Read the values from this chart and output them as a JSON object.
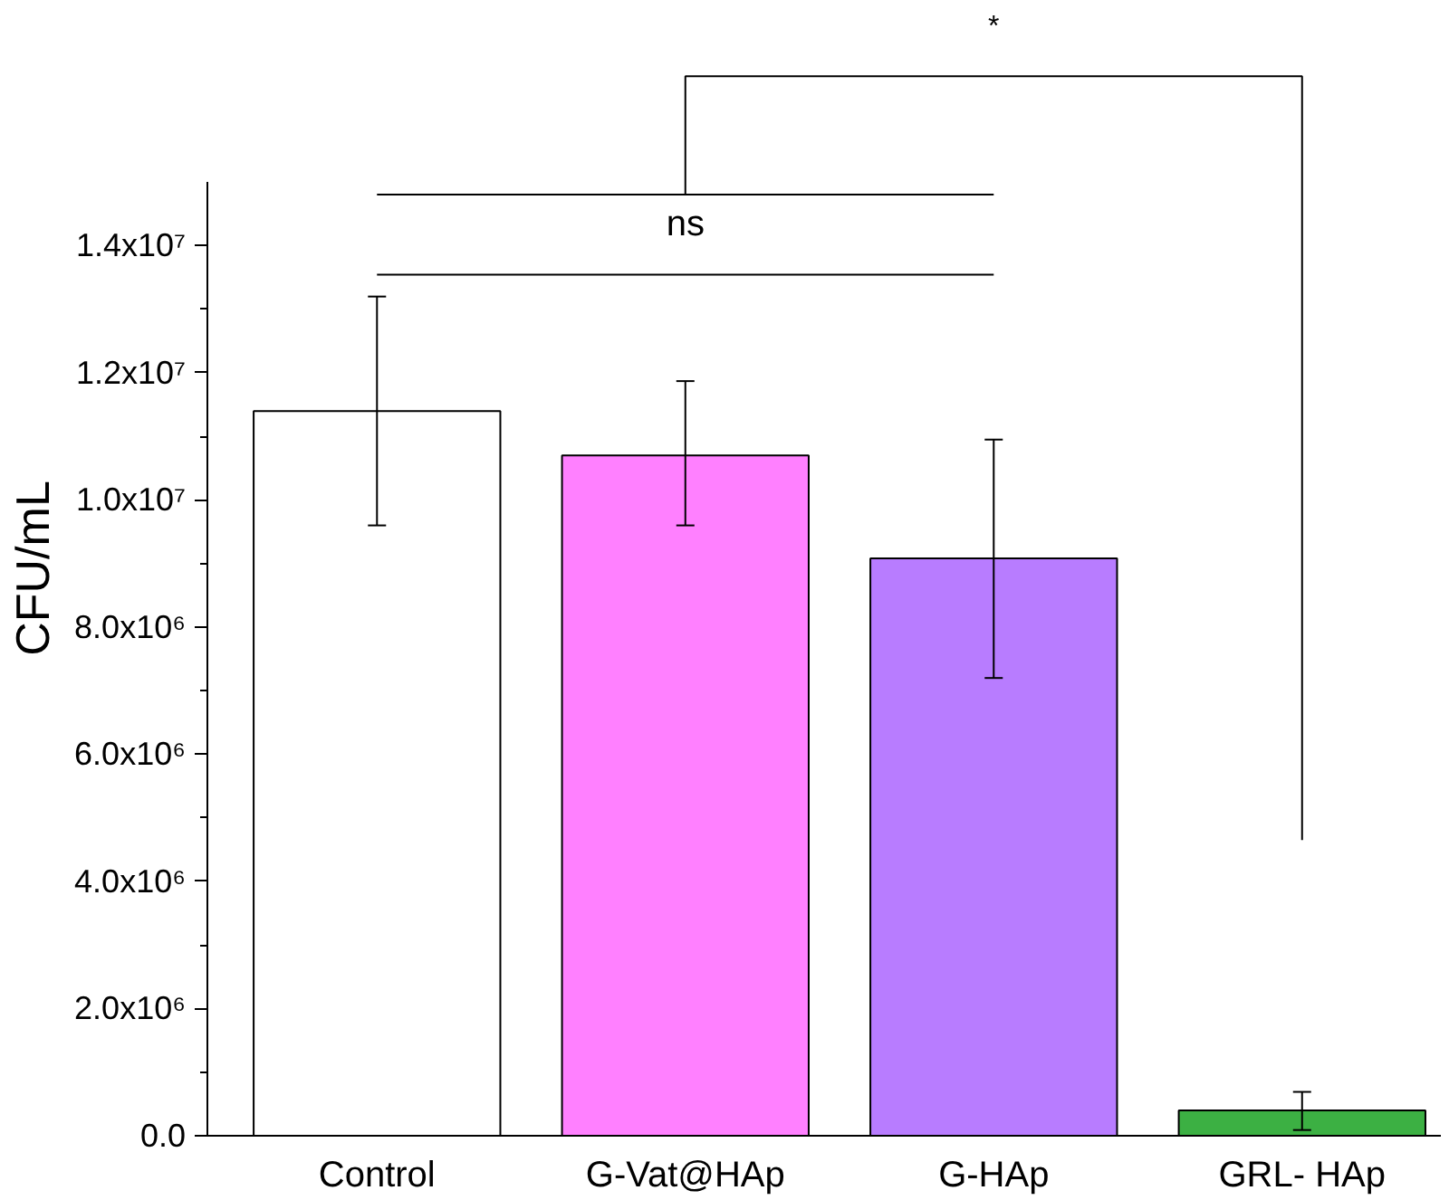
{
  "chart_data": {
    "type": "bar",
    "ylabel": "CFU/mL",
    "categories": [
      "Control",
      "G-Vat@HAp",
      "G-HAp",
      "GRL- HAp"
    ],
    "values": [
      11400000,
      10700000,
      9080000,
      400000
    ],
    "errors": [
      [
        9600000,
        13200000
      ],
      [
        9600000,
        11870000
      ],
      [
        7200000,
        10950000
      ],
      [
        90000,
        690000
      ]
    ],
    "colors": [
      "#ffffff",
      "#ff80ff",
      "#b87cff",
      "#3cb043"
    ],
    "ylim": [
      0,
      15000000
    ],
    "yticks": [
      {
        "value": 0,
        "label": "0.0"
      },
      {
        "value": 2000000,
        "label": "2.0x10⁶"
      },
      {
        "value": 4000000,
        "label": "4.0x10⁶"
      },
      {
        "value": 6000000,
        "label": "6.0x10⁶"
      },
      {
        "value": 8000000,
        "label": "8.0x10⁶"
      },
      {
        "value": 10000000,
        "label": "1.0x10⁷"
      },
      {
        "value": 12000000,
        "label": "1.2x10⁷"
      },
      {
        "value": 14000000,
        "label": "1.4x10⁷"
      }
    ],
    "annotations": [
      "ns",
      "*"
    ],
    "grid": false
  }
}
